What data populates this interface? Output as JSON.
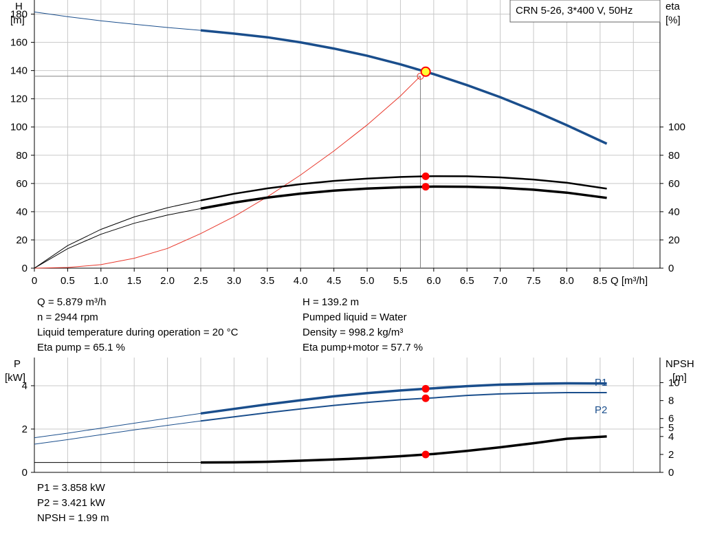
{
  "chart_data": [
    {
      "type": "line",
      "title": "CRN 5-26, 3*400 V, 50Hz",
      "xlabel": "Q [m³/h]",
      "ylabel_left": [
        "H",
        "[m]"
      ],
      "ylabel_right": [
        "eta",
        "[%]"
      ],
      "x_ticks": [
        "0",
        "0.5",
        "1.0",
        "1.5",
        "2.0",
        "2.5",
        "3.0",
        "3.5",
        "4.0",
        "4.5",
        "5.0",
        "5.5",
        "6.0",
        "6.5",
        "7.0",
        "7.5",
        "8.0",
        "8.5"
      ],
      "xlim": [
        0,
        9.4
      ],
      "ylim_left": [
        0,
        190
      ],
      "ylim_right": [
        0,
        190
      ],
      "yticks_left": [
        "0",
        "20",
        "40",
        "60",
        "80",
        "100",
        "120",
        "140",
        "160",
        "180"
      ],
      "yticks_right": [
        "0",
        "20",
        "40",
        "60",
        "80",
        "100"
      ],
      "grid": true,
      "series": [
        {
          "role": "head-curve",
          "x": [
            0,
            0.5,
            1.0,
            1.5,
            2.0,
            2.5,
            3.0,
            3.5,
            4.0,
            4.5,
            5.0,
            5.5,
            5.879,
            6.0,
            6.5,
            7.0,
            7.5,
            8.0,
            8.6
          ],
          "values": [
            181.5,
            178.2,
            175.3,
            172.8,
            170.5,
            168.5,
            166.2,
            163.6,
            160.0,
            155.6,
            150.5,
            144.4,
            139.2,
            137.5,
            129.7,
            121.1,
            111.6,
            101.3,
            88.2
          ]
        },
        {
          "role": "eta-pump",
          "x": [
            0,
            0.5,
            1.0,
            1.5,
            2.0,
            2.5,
            3.0,
            3.5,
            4.0,
            4.5,
            5.0,
            5.5,
            5.879,
            6.0,
            6.5,
            7.0,
            7.5,
            8.0,
            8.6
          ],
          "values": [
            0,
            16.0,
            27.5,
            36.3,
            42.8,
            48.0,
            52.7,
            56.5,
            59.5,
            61.8,
            63.5,
            64.6,
            65.1,
            65.2,
            65.1,
            64.3,
            62.8,
            60.5,
            56.3
          ]
        },
        {
          "role": "eta-pump-motor",
          "x": [
            0,
            0.5,
            1.0,
            1.5,
            2.0,
            2.5,
            3.0,
            3.5,
            4.0,
            4.5,
            5.0,
            5.5,
            5.879,
            6.0,
            6.5,
            7.0,
            7.5,
            8.0,
            8.6
          ],
          "values": [
            0,
            13.8,
            24.0,
            31.8,
            37.6,
            42.2,
            46.5,
            50.0,
            52.8,
            54.9,
            56.4,
            57.3,
            57.7,
            57.8,
            57.7,
            57.0,
            55.6,
            53.5,
            49.8
          ]
        },
        {
          "role": "system-curve",
          "x": [
            0,
            0.5,
            1.0,
            1.5,
            2.0,
            2.5,
            3.0,
            3.5,
            4.0,
            4.5,
            5.0,
            5.5,
            5.8
          ],
          "values": [
            0,
            0.5,
            2.5,
            7.0,
            14.0,
            24.5,
            36.5,
            50.5,
            66.0,
            83.0,
            101.5,
            122.0,
            136.0
          ]
        }
      ],
      "duty_point": {
        "x": 5.879,
        "head": 139.2,
        "eta_pump": 65.1,
        "eta_pump_motor": 57.7
      }
    },
    {
      "type": "line",
      "ylabel_left": [
        "P",
        "[kW]"
      ],
      "ylabel_right": [
        "NPSH",
        "[m]"
      ],
      "xlim": [
        0,
        9.4
      ],
      "ylim_left": [
        0,
        5.3
      ],
      "ylim_right": [
        0,
        12.8
      ],
      "yticks_left": [
        "0",
        "2",
        "4"
      ],
      "yticks_right": [
        "0",
        "2",
        "4",
        "5",
        "6",
        "8",
        "10"
      ],
      "grid": true,
      "series": [
        {
          "name": "P1",
          "x": [
            0,
            0.5,
            1.0,
            1.5,
            2.0,
            2.5,
            3.0,
            3.5,
            4.0,
            4.5,
            5.0,
            5.5,
            5.879,
            6.0,
            6.5,
            7.0,
            7.5,
            8.0,
            8.6
          ],
          "values": [
            1.6,
            1.81,
            2.04,
            2.27,
            2.5,
            2.72,
            2.93,
            3.14,
            3.33,
            3.51,
            3.66,
            3.78,
            3.858,
            3.88,
            3.98,
            4.05,
            4.09,
            4.11,
            4.1
          ]
        },
        {
          "name": "P2",
          "x": [
            0,
            0.5,
            1.0,
            1.5,
            2.0,
            2.5,
            3.0,
            3.5,
            4.0,
            4.5,
            5.0,
            5.5,
            5.879,
            6.0,
            6.5,
            7.0,
            7.5,
            8.0,
            8.6
          ],
          "values": [
            1.3,
            1.51,
            1.74,
            1.96,
            2.17,
            2.37,
            2.56,
            2.75,
            2.93,
            3.09,
            3.23,
            3.35,
            3.421,
            3.44,
            3.55,
            3.62,
            3.66,
            3.68,
            3.68
          ]
        },
        {
          "role": "npsh",
          "x": [
            0,
            0.5,
            1.0,
            1.5,
            2.0,
            2.5,
            3.0,
            3.5,
            4.0,
            4.5,
            5.0,
            5.5,
            5.879,
            6.0,
            6.5,
            7.0,
            7.5,
            8.0,
            8.6
          ],
          "values": [
            1.1,
            1.1,
            1.1,
            1.1,
            1.1,
            1.1,
            1.12,
            1.18,
            1.3,
            1.43,
            1.59,
            1.8,
            1.99,
            2.05,
            2.4,
            2.8,
            3.25,
            3.75,
            4.0
          ]
        }
      ],
      "duty_point": {
        "x": 5.879,
        "p1": 3.858,
        "p2": 3.421,
        "npsh": 1.99
      }
    }
  ],
  "info_main": {
    "left": [
      "Q = 5.879 m³/h",
      "n = 2944 rpm",
      "Liquid temperature during operation = 20 °C",
      "Eta pump = 65.1 %"
    ],
    "right": [
      "H = 139.2 m",
      "Pumped liquid = Water",
      "Density = 998.2 kg/m³",
      "Eta pump+motor = 57.7 %"
    ]
  },
  "info_power": [
    "P1 = 3.858 kW",
    "P2 = 3.421 kW",
    "NPSH = 1.99 m"
  ],
  "colors": {
    "head": "#1a4e8c",
    "eta": "#000000",
    "system": "#e8362a",
    "marker": "#ff0000",
    "duty_fill": "#ffff33",
    "grid": "#c8c8c8"
  }
}
